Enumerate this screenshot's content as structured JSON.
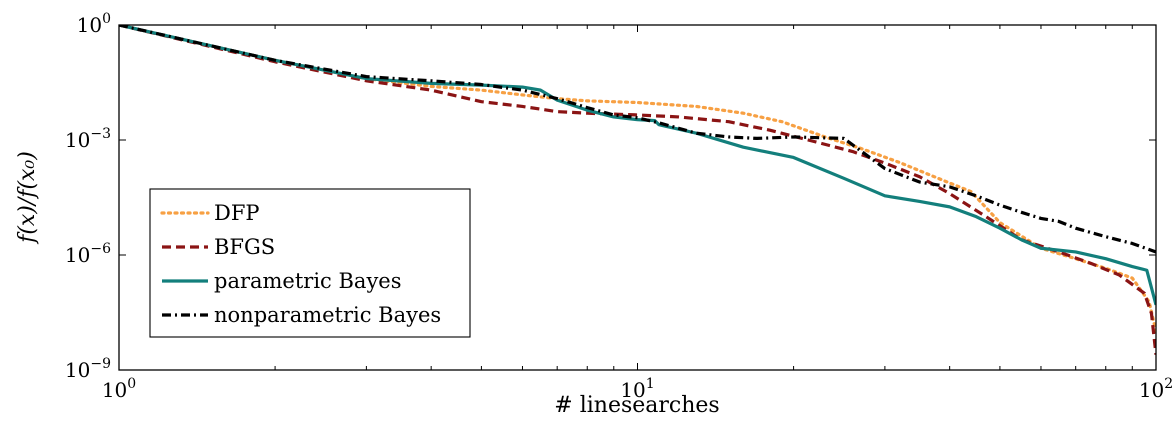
{
  "chart_data": {
    "type": "line",
    "title": "",
    "xlabel": "# linesearches",
    "ylabel": "f(x)/f(x₀)",
    "xscale": "log",
    "yscale": "log",
    "xlim": [
      1,
      100
    ],
    "ylim": [
      1e-09,
      1
    ],
    "x_ticks": [
      {
        "value": 1,
        "base": "10",
        "exp": "0"
      },
      {
        "value": 10,
        "base": "10",
        "exp": "1"
      },
      {
        "value": 100,
        "base": "10",
        "exp": "2"
      }
    ],
    "y_ticks": [
      {
        "value": 1,
        "base": "10",
        "exp": "0"
      },
      {
        "value": 0.001,
        "base": "10",
        "exp": "−3"
      },
      {
        "value": 1e-06,
        "base": "10",
        "exp": "−6"
      },
      {
        "value": 1e-09,
        "base": "10",
        "exp": "−9"
      }
    ],
    "grid": false,
    "legend_position": "lower-left",
    "series": [
      {
        "name": "DFP",
        "color": "#f7a043",
        "style": "dotted",
        "x": [
          1,
          2,
          3,
          4,
          5,
          6,
          7,
          8,
          10,
          13,
          16,
          19,
          23,
          27,
          32,
          38,
          44,
          50,
          60,
          70,
          80,
          90,
          97,
          100
        ],
        "y": [
          1,
          0.12,
          0.04,
          0.025,
          0.02,
          0.015,
          0.012,
          0.0105,
          0.0095,
          0.0075,
          0.005,
          0.003,
          0.0012,
          0.0006,
          0.00026,
          0.0001,
          4.5e-05,
          7e-06,
          1.5e-06,
          8e-07,
          4.5e-07,
          2.5e-07,
          6e-08,
          1e-08
        ]
      },
      {
        "name": "BFGS",
        "color": "#8b1414",
        "style": "dashed",
        "x": [
          1,
          2,
          3,
          4,
          5,
          6,
          7,
          8,
          10,
          12,
          15,
          18,
          22,
          26,
          30,
          35,
          40,
          47,
          55,
          65,
          75,
          85,
          95,
          98,
          100
        ],
        "y": [
          1,
          0.11,
          0.035,
          0.02,
          0.01,
          0.0075,
          0.0055,
          0.005,
          0.0045,
          0.004,
          0.003,
          0.0018,
          0.0009,
          0.0005,
          0.00025,
          0.00011,
          4e-05,
          1e-05,
          2.5e-06,
          1.2e-06,
          6e-07,
          3e-07,
          1e-07,
          3e-08,
          2.5e-09
        ]
      },
      {
        "name": "parametric Bayes",
        "color": "#137f7c",
        "style": "solid",
        "x": [
          1,
          2,
          3,
          4,
          5,
          6,
          6.5,
          7,
          8,
          9,
          10,
          10.8,
          11,
          13,
          16,
          20,
          25,
          30,
          35,
          40,
          45,
          50,
          55,
          60,
          70,
          80,
          90,
          96,
          100
        ],
        "y": [
          1,
          0.12,
          0.04,
          0.03,
          0.027,
          0.024,
          0.02,
          0.011,
          0.006,
          0.004,
          0.0034,
          0.0032,
          0.0025,
          0.0015,
          0.00065,
          0.00035,
          0.0001,
          3.5e-05,
          2.5e-05,
          1.8e-05,
          1e-05,
          5e-06,
          2.5e-06,
          1.5e-06,
          1.2e-06,
          8e-07,
          5e-07,
          4e-07,
          5e-08
        ]
      },
      {
        "name": "nonparametric Bayes",
        "color": "#000000",
        "style": "dashdot",
        "x": [
          1,
          2,
          3,
          4,
          5,
          6,
          7,
          8,
          9,
          10,
          11,
          13,
          15,
          17,
          20,
          25,
          30,
          35,
          40,
          45,
          50,
          55,
          60,
          65,
          70,
          80,
          90,
          100
        ],
        "y": [
          1,
          0.12,
          0.045,
          0.035,
          0.028,
          0.02,
          0.012,
          0.007,
          0.0045,
          0.0038,
          0.0028,
          0.0015,
          0.0012,
          0.0011,
          0.0012,
          0.0011,
          0.00018,
          8e-05,
          6e-05,
          3.5e-05,
          2e-05,
          1.3e-05,
          9e-06,
          7.5e-06,
          5e-06,
          3e-06,
          2e-06,
          1.2e-06
        ]
      }
    ]
  }
}
